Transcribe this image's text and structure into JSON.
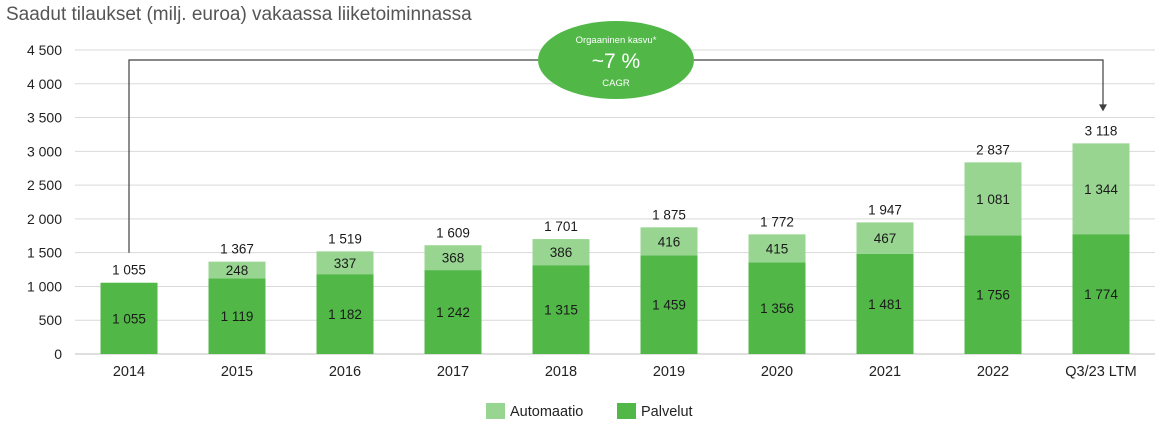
{
  "chart_data": {
    "type": "bar",
    "stacked": true,
    "title": "Saadut tilaukset (milj. euroa) vakaassa liiketoiminnassa",
    "categories": [
      "2014",
      "2015",
      "2016",
      "2017",
      "2018",
      "2019",
      "2020",
      "2021",
      "2022",
      "Q3/23 LTM"
    ],
    "series": [
      {
        "name": "Palvelut",
        "color": "#51b848",
        "values": [
          1055,
          1119,
          1182,
          1242,
          1315,
          1459,
          1356,
          1481,
          1756,
          1774
        ],
        "labels": [
          "1 055",
          "1 119",
          "1 182",
          "1 242",
          "1 315",
          "1 459",
          "1 356",
          "1 481",
          "1 756",
          "1 774"
        ]
      },
      {
        "name": "Automaatio",
        "color": "#98d591",
        "values": [
          0,
          248,
          337,
          368,
          386,
          416,
          415,
          467,
          1081,
          1344
        ],
        "labels": [
          "",
          "248",
          "337",
          "368",
          "386",
          "416",
          "415",
          "467",
          "1 081",
          "1 344"
        ]
      }
    ],
    "totals": [
      1055,
      1367,
      1519,
      1609,
      1701,
      1875,
      1772,
      1947,
      2837,
      3118
    ],
    "total_labels": [
      "1 055",
      "1 367",
      "1 519",
      "1 609",
      "1 701",
      "1 875",
      "1 772",
      "1 947",
      "2 837",
      "3 118"
    ],
    "ylim": [
      0,
      4500
    ],
    "yticks": [
      0,
      500,
      1000,
      1500,
      2000,
      2500,
      3000,
      3500,
      4000,
      4500
    ],
    "ytick_labels": [
      "0",
      "500",
      "1 000",
      "1 500",
      "2 000",
      "2 500",
      "3 000",
      "3 500",
      "4 000",
      "4 500"
    ],
    "grid": true,
    "legend_position": "bottom",
    "legend": [
      {
        "name": "Automaatio",
        "color": "#98d591"
      },
      {
        "name": "Palvelut",
        "color": "#51b848"
      }
    ],
    "annotation": {
      "line1": "Orgaaninen kasvu*",
      "line2": "~7 %",
      "line3": "CAGR",
      "color": "#51b848",
      "from_category": "2014",
      "to_category": "Q3/23 LTM"
    },
    "colors": {
      "palvelut": "#51b848",
      "automaatio": "#98d591",
      "grid": "#d9d9d9",
      "axis_text": "#222222"
    }
  }
}
